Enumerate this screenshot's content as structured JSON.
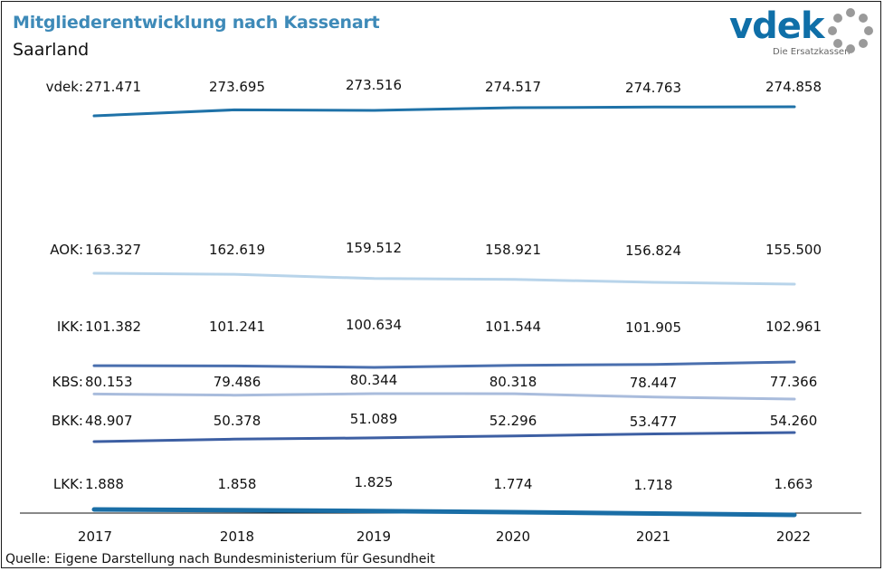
{
  "header": {
    "title": "Mitgliederentwicklung nach Kassenart",
    "subtitle": "Saarland"
  },
  "logo": {
    "text": "vdek",
    "tagline": "Die Ersatzkassen"
  },
  "footer": {
    "source": "Quelle: Eigene Darstellung nach Bundesministerium für Gesundheit"
  },
  "chart_data": {
    "type": "line",
    "title": "Mitgliederentwicklung nach Kassenart",
    "subtitle": "Saarland",
    "x": [
      "2017",
      "2018",
      "2019",
      "2020",
      "2021",
      "2022"
    ],
    "series": [
      {
        "name": "vdek",
        "label": "vdek:",
        "color": "#1f72a8",
        "values": [
          "271.471",
          "273.695",
          "273.516",
          "274.517",
          "274.763",
          "274.858"
        ]
      },
      {
        "name": "AOK",
        "label": "AOK:",
        "color": "#b8d4ea",
        "values": [
          "163.327",
          "162.619",
          "159.512",
          "158.921",
          "156.824",
          "155.500"
        ]
      },
      {
        "name": "IKK",
        "label": "IKK:",
        "color": "#4a6fae",
        "values": [
          "101.382",
          "101.241",
          "100.634",
          "101.544",
          "101.905",
          "102.961"
        ]
      },
      {
        "name": "KBS",
        "label": "KBS:",
        "color": "#a9bcdc",
        "values": [
          "80.153",
          "79.486",
          "80.344",
          "80.318",
          "78.447",
          "77.366"
        ]
      },
      {
        "name": "BKK",
        "label": "BKK:",
        "color": "#3d5fa3",
        "values": [
          "48.907",
          "50.378",
          "51.089",
          "52.296",
          "53.477",
          "54.260"
        ]
      },
      {
        "name": "LKK",
        "label": "LKK:",
        "color": "#1a6ea6",
        "values": [
          "1.888",
          "1.858",
          "1.825",
          "1.774",
          "1.718",
          "1.663"
        ]
      }
    ],
    "grid": false,
    "legend": "inline-left"
  }
}
